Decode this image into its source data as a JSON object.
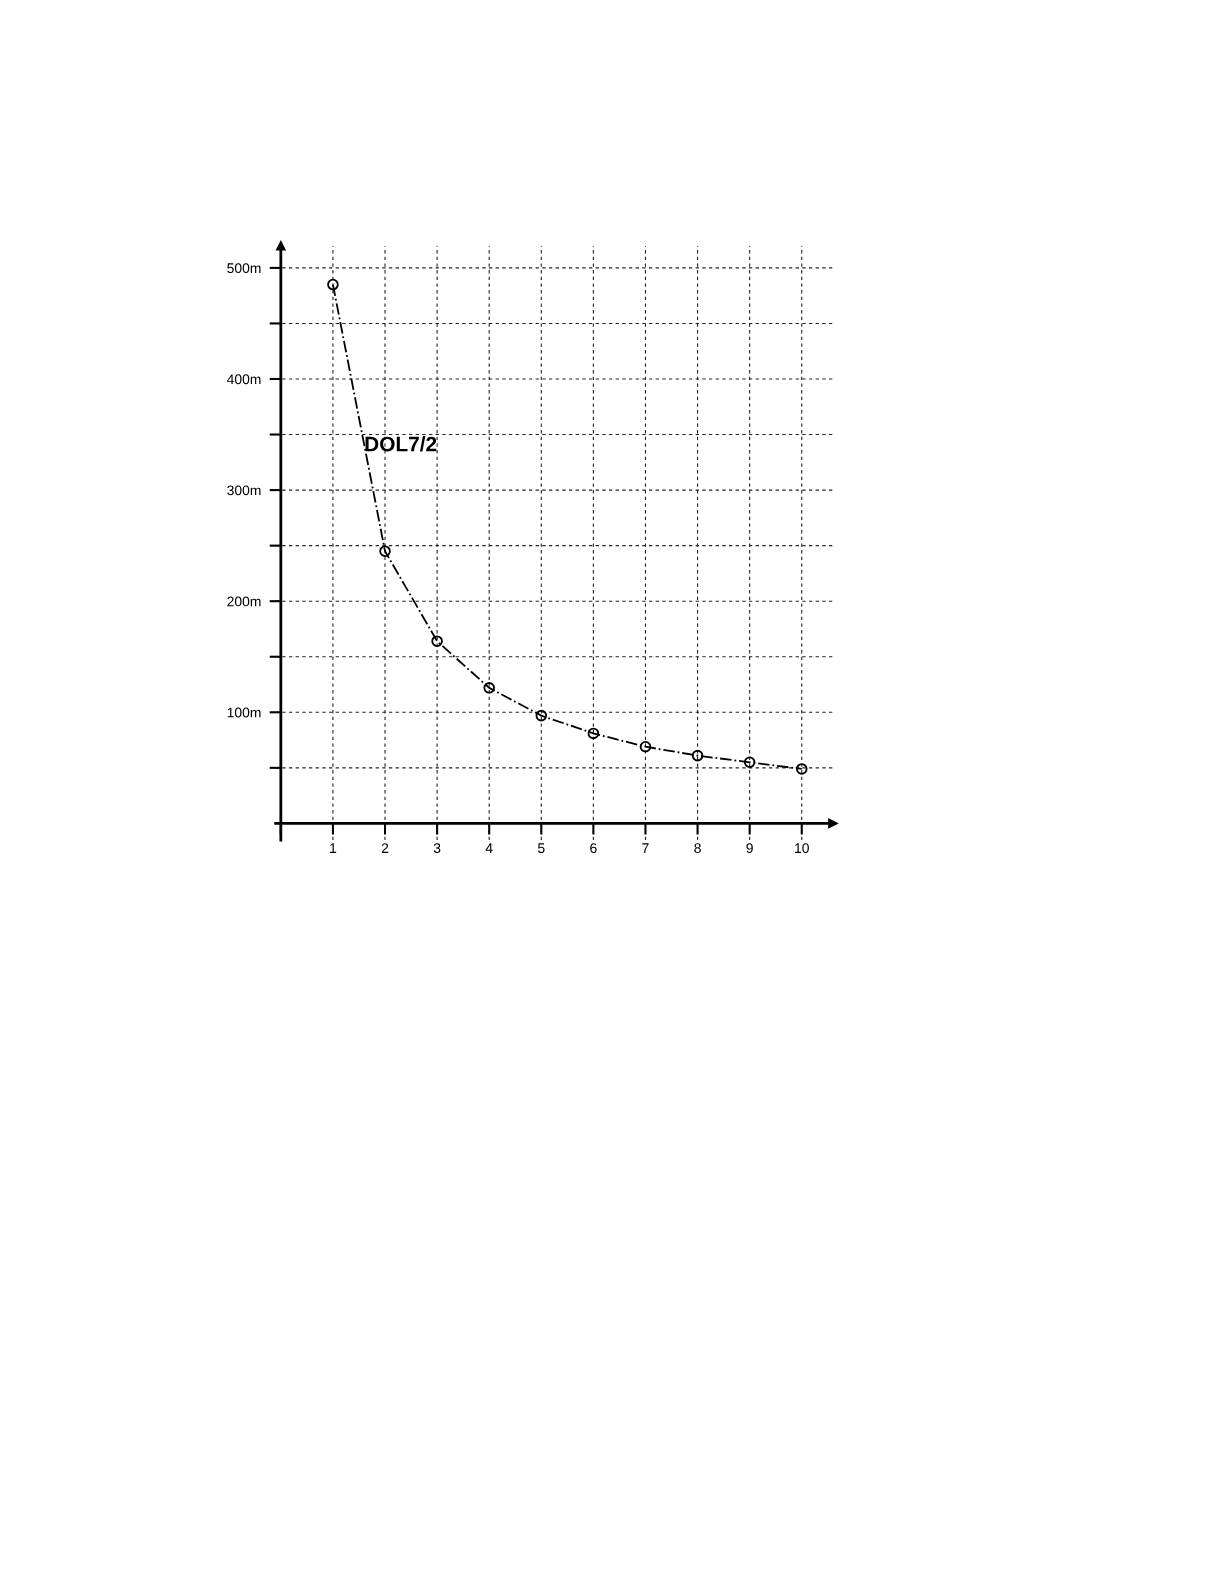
{
  "chart_data": {
    "type": "line",
    "x": [
      1,
      2,
      3,
      4,
      5,
      6,
      7,
      8,
      9,
      10
    ],
    "series": [
      {
        "color": "#000000",
        "values": [
          485,
          245,
          164,
          122,
          97,
          81,
          69,
          61,
          55,
          49
        ]
      }
    ],
    "annotations": [
      {
        "text": "DOL7/2",
        "x": 1.6,
        "y": 335
      }
    ],
    "xlim": [
      -0.1,
      10.6
    ],
    "ylim": [
      -15,
      520
    ],
    "xticks": [
      {
        "value": 0,
        "label": null
      },
      1,
      2,
      3,
      4,
      5,
      6,
      7,
      8,
      9,
      10
    ],
    "yticks": [
      {
        "value": 50,
        "label": null
      },
      {
        "value": 100,
        "label": "100m"
      },
      {
        "value": 150,
        "label": null
      },
      {
        "value": 200,
        "label": "200m"
      },
      {
        "value": 250,
        "label": null
      },
      {
        "value": 300,
        "label": "300m"
      },
      {
        "value": 350,
        "label": null
      },
      {
        "value": 400,
        "label": "400m"
      },
      {
        "value": 450,
        "label": null
      },
      {
        "value": 500,
        "label": "500m"
      }
    ],
    "grid": true,
    "marker": "circle",
    "line_style": "dashed"
  }
}
